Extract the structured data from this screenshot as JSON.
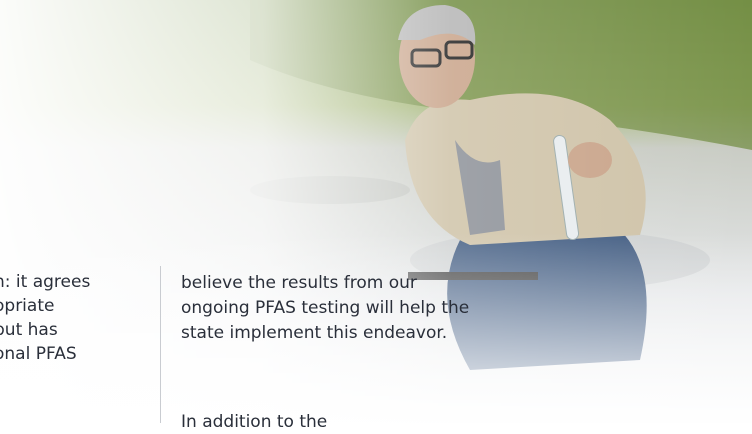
{
  "left_column": {
    "lines": [
      "h: it agrees",
      "opriate",
      "but has",
      "onal PFAS"
    ]
  },
  "right_column": {
    "lines": [
      "believe the results from our",
      "ongoing PFAS testing will help the",
      "state implement this endeavor.",
      "In addition to the"
    ]
  }
}
